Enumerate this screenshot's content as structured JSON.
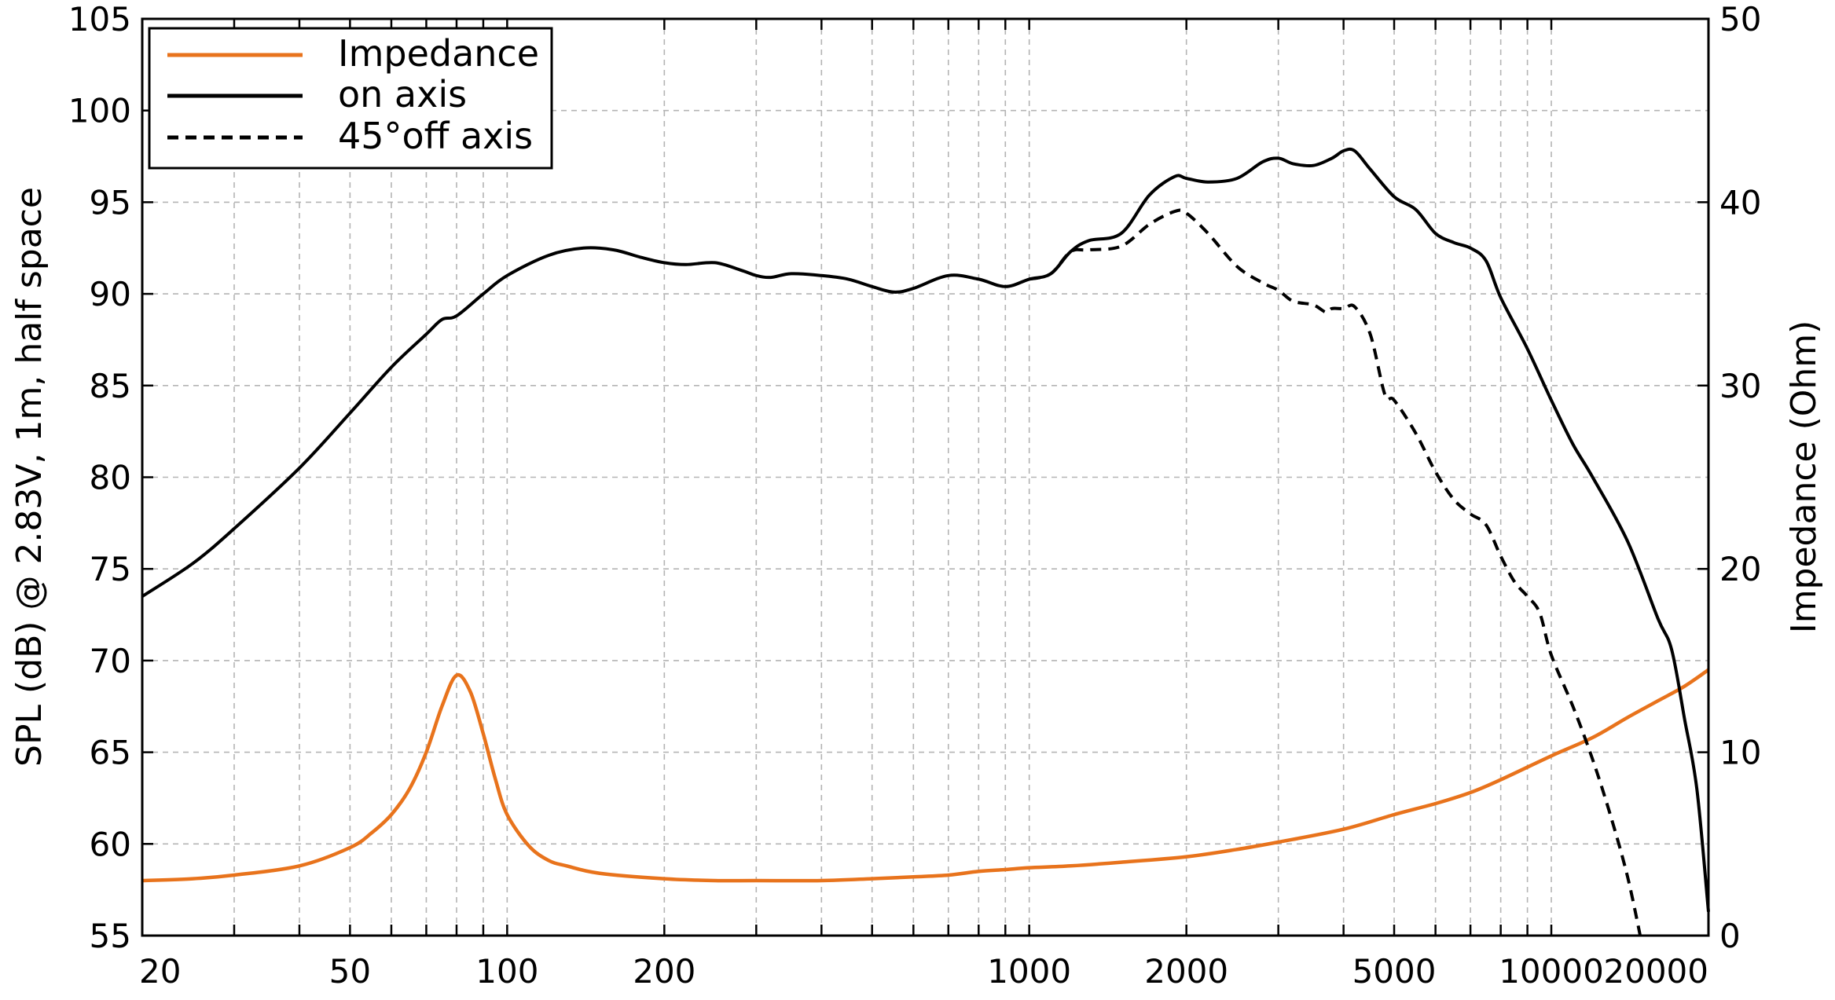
{
  "chart_data": {
    "type": "line",
    "title": "",
    "xlabel": "",
    "ylabel": "SPL (dB) @ 2.83V, 1m, half space",
    "y2label": "Impedance (Ohm)",
    "x_scale": "log",
    "xlim": [
      20,
      20000
    ],
    "ylim": [
      55,
      105
    ],
    "y2lim": [
      0,
      50
    ],
    "x_ticks": [
      20,
      50,
      100,
      200,
      1000,
      2000,
      5000,
      10000,
      20000
    ],
    "y_ticks": [
      55,
      60,
      65,
      70,
      75,
      80,
      85,
      90,
      95,
      100,
      105
    ],
    "y2_ticks": [
      0,
      10,
      20,
      30,
      40,
      50
    ],
    "grid": true,
    "legend_position": "top-left",
    "series": [
      {
        "name": "Impedance",
        "axis": "right",
        "color": "#E8731C",
        "style": "solid",
        "points": [
          [
            20,
            3
          ],
          [
            25,
            3.1
          ],
          [
            30,
            3.3
          ],
          [
            40,
            3.8
          ],
          [
            50,
            4.8
          ],
          [
            55,
            5.6
          ],
          [
            60,
            6.6
          ],
          [
            65,
            8
          ],
          [
            70,
            10
          ],
          [
            75,
            12.5
          ],
          [
            80,
            14.2
          ],
          [
            85,
            13.3
          ],
          [
            90,
            11
          ],
          [
            95,
            8.5
          ],
          [
            100,
            6.6
          ],
          [
            110,
            4.9
          ],
          [
            120,
            4.1
          ],
          [
            130,
            3.8
          ],
          [
            150,
            3.4
          ],
          [
            200,
            3.1
          ],
          [
            250,
            3
          ],
          [
            300,
            3
          ],
          [
            400,
            3
          ],
          [
            500,
            3.1
          ],
          [
            600,
            3.2
          ],
          [
            700,
            3.3
          ],
          [
            800,
            3.5
          ],
          [
            900,
            3.6
          ],
          [
            1000,
            3.7
          ],
          [
            1200,
            3.8
          ],
          [
            1500,
            4
          ],
          [
            2000,
            4.3
          ],
          [
            2500,
            4.7
          ],
          [
            3000,
            5.1
          ],
          [
            4000,
            5.8
          ],
          [
            5000,
            6.6
          ],
          [
            6000,
            7.2
          ],
          [
            7000,
            7.8
          ],
          [
            8000,
            8.5
          ],
          [
            10000,
            9.8
          ],
          [
            12000,
            10.8
          ],
          [
            14000,
            11.9
          ],
          [
            16000,
            12.8
          ],
          [
            18000,
            13.6
          ],
          [
            20000,
            14.5
          ]
        ]
      },
      {
        "name": "on axis",
        "axis": "left",
        "color": "#000000",
        "style": "solid",
        "points": [
          [
            20,
            73.5
          ],
          [
            25,
            75.3
          ],
          [
            30,
            77.2
          ],
          [
            40,
            80.5
          ],
          [
            50,
            83.5
          ],
          [
            60,
            86
          ],
          [
            70,
            87.8
          ],
          [
            75,
            88.6
          ],
          [
            80,
            88.8
          ],
          [
            90,
            90
          ],
          [
            100,
            91
          ],
          [
            120,
            92.1
          ],
          [
            140,
            92.5
          ],
          [
            160,
            92.4
          ],
          [
            180,
            92
          ],
          [
            200,
            91.7
          ],
          [
            220,
            91.6
          ],
          [
            250,
            91.7
          ],
          [
            280,
            91.3
          ],
          [
            300,
            91
          ],
          [
            320,
            90.9
          ],
          [
            350,
            91.1
          ],
          [
            400,
            91
          ],
          [
            450,
            90.8
          ],
          [
            500,
            90.4
          ],
          [
            550,
            90.1
          ],
          [
            600,
            90.3
          ],
          [
            700,
            91
          ],
          [
            800,
            90.8
          ],
          [
            900,
            90.4
          ],
          [
            1000,
            90.8
          ],
          [
            1100,
            91.1
          ],
          [
            1200,
            92.3
          ],
          [
            1300,
            92.9
          ],
          [
            1500,
            93.3
          ],
          [
            1700,
            95.4
          ],
          [
            1900,
            96.4
          ],
          [
            2000,
            96.3
          ],
          [
            2200,
            96.1
          ],
          [
            2500,
            96.3
          ],
          [
            2800,
            97.2
          ],
          [
            3000,
            97.4
          ],
          [
            3200,
            97.1
          ],
          [
            3500,
            97
          ],
          [
            3800,
            97.4
          ],
          [
            4000,
            97.8
          ],
          [
            4200,
            97.8
          ],
          [
            4500,
            96.8
          ],
          [
            5000,
            95.3
          ],
          [
            5500,
            94.6
          ],
          [
            6000,
            93.3
          ],
          [
            6500,
            92.8
          ],
          [
            7000,
            92.5
          ],
          [
            7500,
            91.8
          ],
          [
            8000,
            89.8
          ],
          [
            9000,
            87
          ],
          [
            10000,
            84.2
          ],
          [
            11000,
            81.8
          ],
          [
            12000,
            80
          ],
          [
            14000,
            76.5
          ],
          [
            16000,
            72.3
          ],
          [
            17000,
            70.6
          ],
          [
            18000,
            66.8
          ],
          [
            19000,
            63
          ],
          [
            20000,
            56.3
          ]
        ]
      },
      {
        "name": "45°off axis",
        "axis": "left",
        "color": "#000000",
        "style": "dashed",
        "points": [
          [
            1000,
            90.8
          ],
          [
            1100,
            91.1
          ],
          [
            1200,
            92.3
          ],
          [
            1300,
            92.4
          ],
          [
            1500,
            92.6
          ],
          [
            1700,
            93.8
          ],
          [
            1900,
            94.5
          ],
          [
            2000,
            94.4
          ],
          [
            2200,
            93.3
          ],
          [
            2500,
            91.5
          ],
          [
            2800,
            90.6
          ],
          [
            3000,
            90.2
          ],
          [
            3200,
            89.6
          ],
          [
            3500,
            89.4
          ],
          [
            3700,
            89
          ],
          [
            3800,
            89.2
          ],
          [
            4000,
            89.2
          ],
          [
            4200,
            89.3
          ],
          [
            4500,
            87.8
          ],
          [
            4800,
            84.5
          ],
          [
            5000,
            84.2
          ],
          [
            5500,
            82.4
          ],
          [
            6000,
            80.3
          ],
          [
            6500,
            78.8
          ],
          [
            7000,
            78
          ],
          [
            7500,
            77.4
          ],
          [
            8000,
            75.7
          ],
          [
            8500,
            74.3
          ],
          [
            9000,
            73.5
          ],
          [
            9500,
            72.6
          ],
          [
            10000,
            70.3
          ],
          [
            11000,
            67.5
          ],
          [
            12000,
            64.6
          ],
          [
            13000,
            61.5
          ],
          [
            14000,
            58.2
          ],
          [
            14800,
            55
          ]
        ]
      }
    ]
  }
}
